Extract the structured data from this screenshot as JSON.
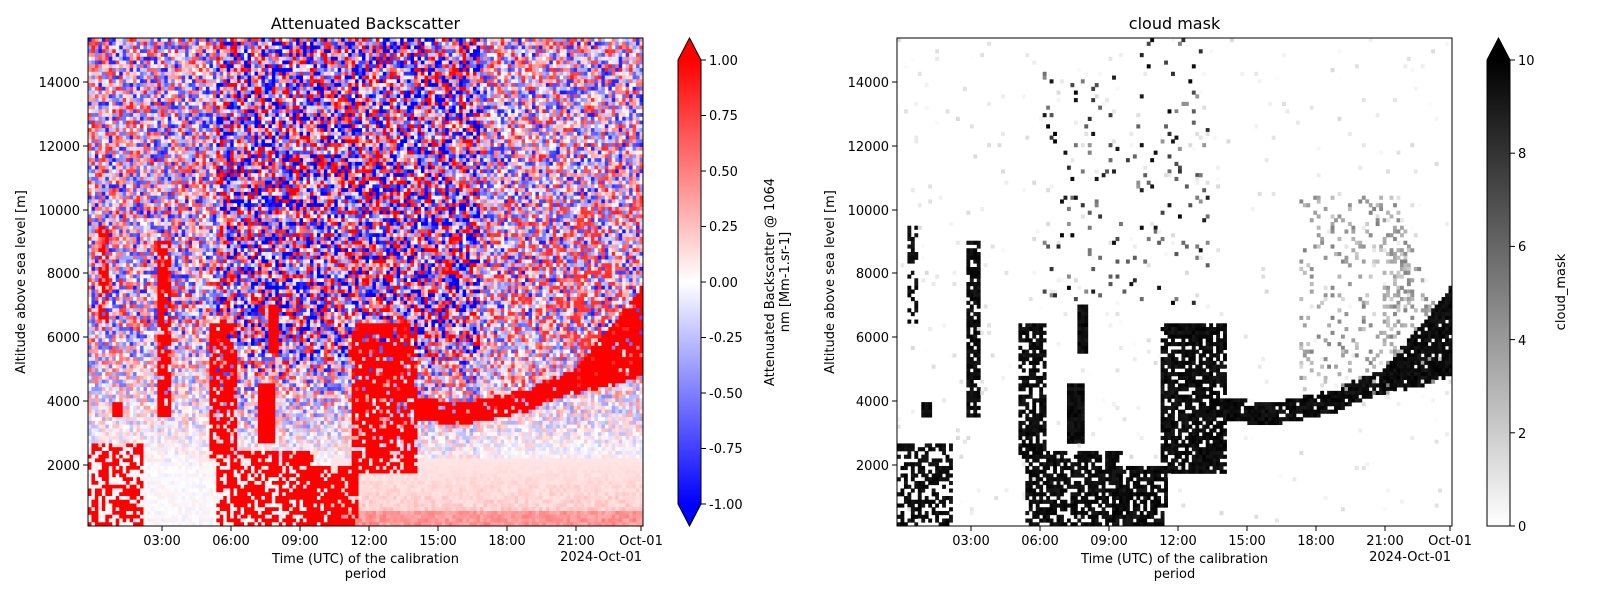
{
  "chart_data": [
    {
      "type": "heatmap",
      "title": "Attenuated Backscatter",
      "xlabel": "Time (UTC) of the calibration period",
      "xlabel_lines": [
        "Time (UTC) of the calibration",
        "period"
      ],
      "ylabel": "Altitude above sea level [m]",
      "x_ticks": [
        "03:00",
        "06:00",
        "09:00",
        "12:00",
        "15:00",
        "18:00",
        "21:00",
        "Oct-01"
      ],
      "x_offset_label": "2024-Oct-01",
      "y_ticks": [
        2000,
        4000,
        6000,
        8000,
        10000,
        12000,
        14000
      ],
      "xlim": [
        "2024-09-30T00:00",
        "2024-10-01T00:05"
      ],
      "ylim": [
        100,
        15400
      ],
      "colormap": "bwr",
      "colorbar": {
        "label": "Attenuated Backscatter @ 1064 nm [Mm-1.sr-1]",
        "label_lines": [
          "Attenuated Backscatter @ 1064",
          "nm [Mm-1.sr-1]"
        ],
        "range": [
          -1.0,
          1.0
        ],
        "ticks": [
          "-1.00",
          "-0.75",
          "-0.50",
          "-0.25",
          "0.00",
          "0.25",
          "0.50",
          "0.75",
          "1.00"
        ],
        "extend": "both"
      },
      "colors": {
        "low": "#0000ff",
        "mid": "#ffffff",
        "high": "#ff0000"
      }
    },
    {
      "type": "heatmap",
      "title": "cloud mask",
      "xlabel": "Time (UTC) of the calibration period",
      "xlabel_lines": [
        "Time (UTC) of the calibration",
        "period"
      ],
      "ylabel": "Altitude above sea level [m]",
      "x_ticks": [
        "03:00",
        "06:00",
        "09:00",
        "12:00",
        "15:00",
        "18:00",
        "21:00",
        "Oct-01"
      ],
      "x_offset_label": "2024-Oct-01",
      "y_ticks": [
        2000,
        4000,
        6000,
        8000,
        10000,
        12000,
        14000
      ],
      "xlim": [
        "2024-09-30T00:00",
        "2024-10-01T00:05"
      ],
      "ylim": [
        100,
        15400
      ],
      "colormap": "Greys",
      "colorbar": {
        "label": "cloud_mask",
        "range": [
          0,
          10
        ],
        "ticks": [
          "0",
          "2",
          "4",
          "6",
          "8",
          "10"
        ],
        "extend": "max"
      },
      "colors": {
        "low": "#ffffff",
        "high": "#000000"
      }
    }
  ]
}
